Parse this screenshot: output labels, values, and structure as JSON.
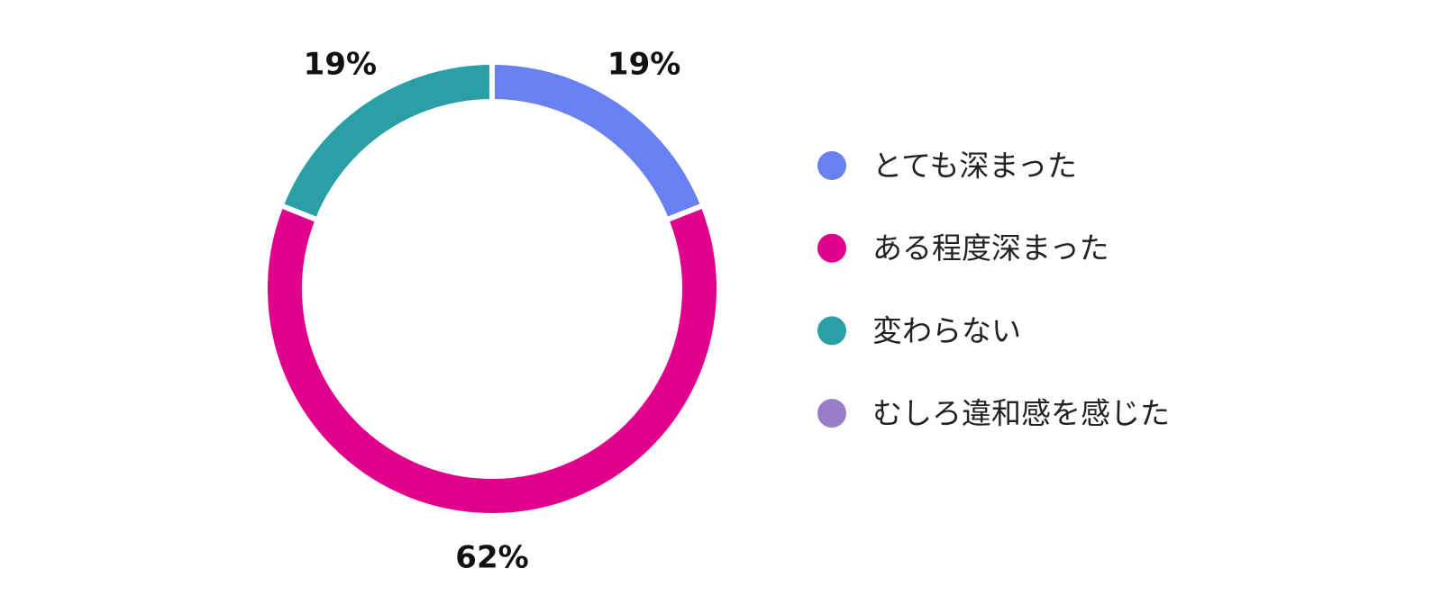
{
  "chart_data": {
    "type": "donut",
    "categories": [
      "とても深まった",
      "ある程度深まった",
      "変わらない",
      "むしろ違和感を感じた"
    ],
    "values": [
      19,
      62,
      19,
      0
    ],
    "value_labels": [
      "19%",
      "62%",
      "19%",
      null
    ],
    "colors": [
      "#6880f0",
      "#e0008c",
      "#2aa0a6",
      "#9b7cc8"
    ],
    "legend": "right"
  }
}
